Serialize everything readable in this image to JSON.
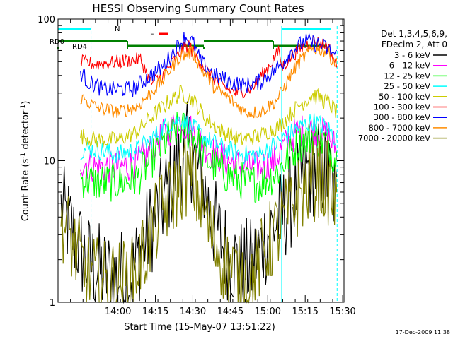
{
  "chart_data": {
    "type": "line",
    "title": "HESSI Observing Summary Count Rates",
    "xlabel": "Start Time (15-May-07 13:51:22)",
    "ylabel_main": "Count Rate (s",
    "ylabel_sup1": "-1",
    "ylabel_mid": " detector",
    "ylabel_sup2": "-1",
    "ylabel_end": ")",
    "yscale": "log",
    "ylim": [
      1,
      100
    ],
    "xlim_minutes": [
      13.6,
      30.5
    ],
    "x_ticks": [
      {
        "label": "14:00",
        "t": 14.0
      },
      {
        "label": "14:15",
        "t": 14.25
      },
      {
        "label": "14:30",
        "t": 14.5
      },
      {
        "label": "14:45",
        "t": 14.75
      },
      {
        "label": "15:00",
        "t": 15.0
      },
      {
        "label": "15:15",
        "t": 15.25
      },
      {
        "label": "15:30",
        "t": 15.5
      }
    ],
    "y_ticks": [
      {
        "label": "1",
        "v": 1
      },
      {
        "label": "10",
        "v": 10
      },
      {
        "label": "100",
        "v": 100
      }
    ],
    "legend_header": [
      "Det 1,3,4,5,6,9,",
      "FDecim 2, Att 0"
    ],
    "legend_position": "top-right",
    "series": [
      {
        "name": "3 - 6 keV",
        "color": "#000000"
      },
      {
        "name": "6 - 12 keV",
        "color": "#ff00ff"
      },
      {
        "name": "12 - 25 keV",
        "color": "#00ff00"
      },
      {
        "name": "25 - 50 keV",
        "color": "#00ffff"
      },
      {
        "name": "50 - 100 keV",
        "color": "#cccc00"
      },
      {
        "name": "100 - 300 keV",
        "color": "#ff0000"
      },
      {
        "name": "300 - 800 keV",
        "color": "#0000ff"
      },
      {
        "name": "800 - 7000 keV",
        "color": "#ff8c00"
      },
      {
        "name": "7000 - 20000 keV",
        "color": "#808000"
      }
    ],
    "flags": {
      "N_label": "N",
      "F_label": "F",
      "RD0_label": "RD0",
      "RD4_label": "RD4"
    },
    "timestamp": "17-Dec-2009 11:38"
  }
}
